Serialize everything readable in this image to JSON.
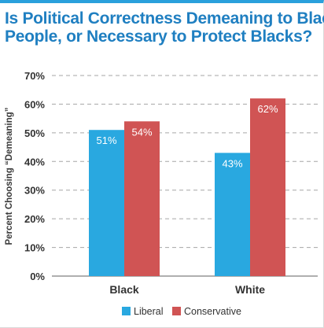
{
  "chart_data": {
    "type": "bar",
    "title_lines": [
      "Is Political Correctness Demeaning to Black",
      "People, or Necessary to Protect Blacks?"
    ],
    "ylabel": "Percent Choosing “Demeaning”",
    "xlabel": "",
    "ylim": [
      0,
      70
    ],
    "yticks": [
      0,
      10,
      20,
      30,
      40,
      50,
      60,
      70
    ],
    "ytick_suffix": "%",
    "grid": true,
    "categories": [
      "Black",
      "White"
    ],
    "series": [
      {
        "name": "Liberal",
        "color": "#29a8e0",
        "values": [
          51,
          43
        ]
      },
      {
        "name": "Conservative",
        "color": "#d05454",
        "values": [
          54,
          62
        ]
      }
    ],
    "legend_position": "bottom",
    "data_labels": true
  }
}
